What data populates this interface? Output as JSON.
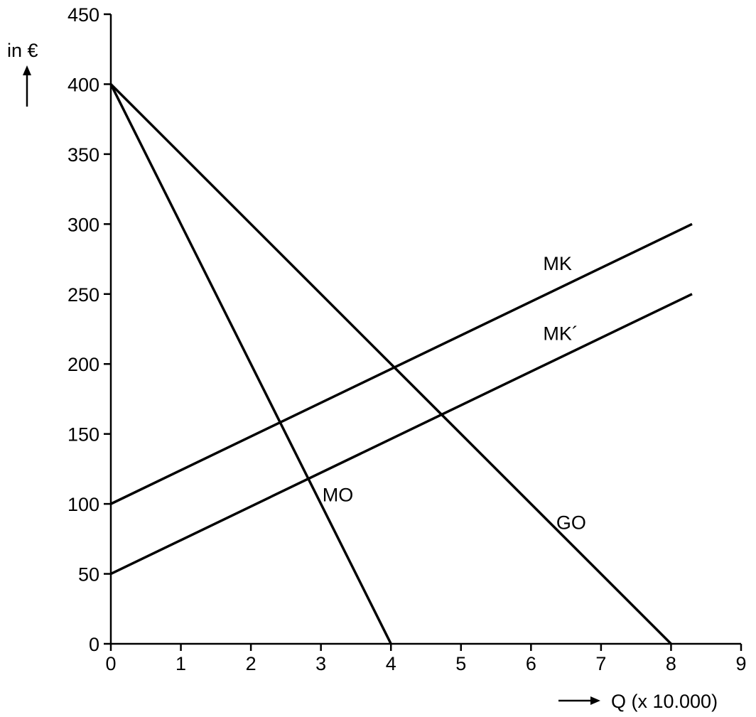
{
  "chart_data": {
    "type": "line",
    "title": "",
    "xlabel": "Q (x 10.000)",
    "ylabel": "in €",
    "xlim": [
      0,
      9
    ],
    "ylim": [
      0,
      450
    ],
    "x_ticks": [
      "0",
      "1",
      "2",
      "3",
      "4",
      "5",
      "6",
      "7",
      "8",
      "9"
    ],
    "y_ticks": [
      "0",
      "50",
      "100",
      "150",
      "200",
      "250",
      "300",
      "350",
      "400",
      "450"
    ],
    "grid": false,
    "legend": "none",
    "series": [
      {
        "name": "MO",
        "x": [
          0,
          4
        ],
        "y": [
          400,
          0
        ]
      },
      {
        "name": "GO",
        "x": [
          0,
          8
        ],
        "y": [
          400,
          0
        ]
      },
      {
        "name": "MK",
        "x": [
          0,
          8.3
        ],
        "y": [
          100,
          300
        ]
      },
      {
        "name": "MK´",
        "x": [
          0,
          8.3
        ],
        "y": [
          50,
          250
        ]
      }
    ]
  }
}
